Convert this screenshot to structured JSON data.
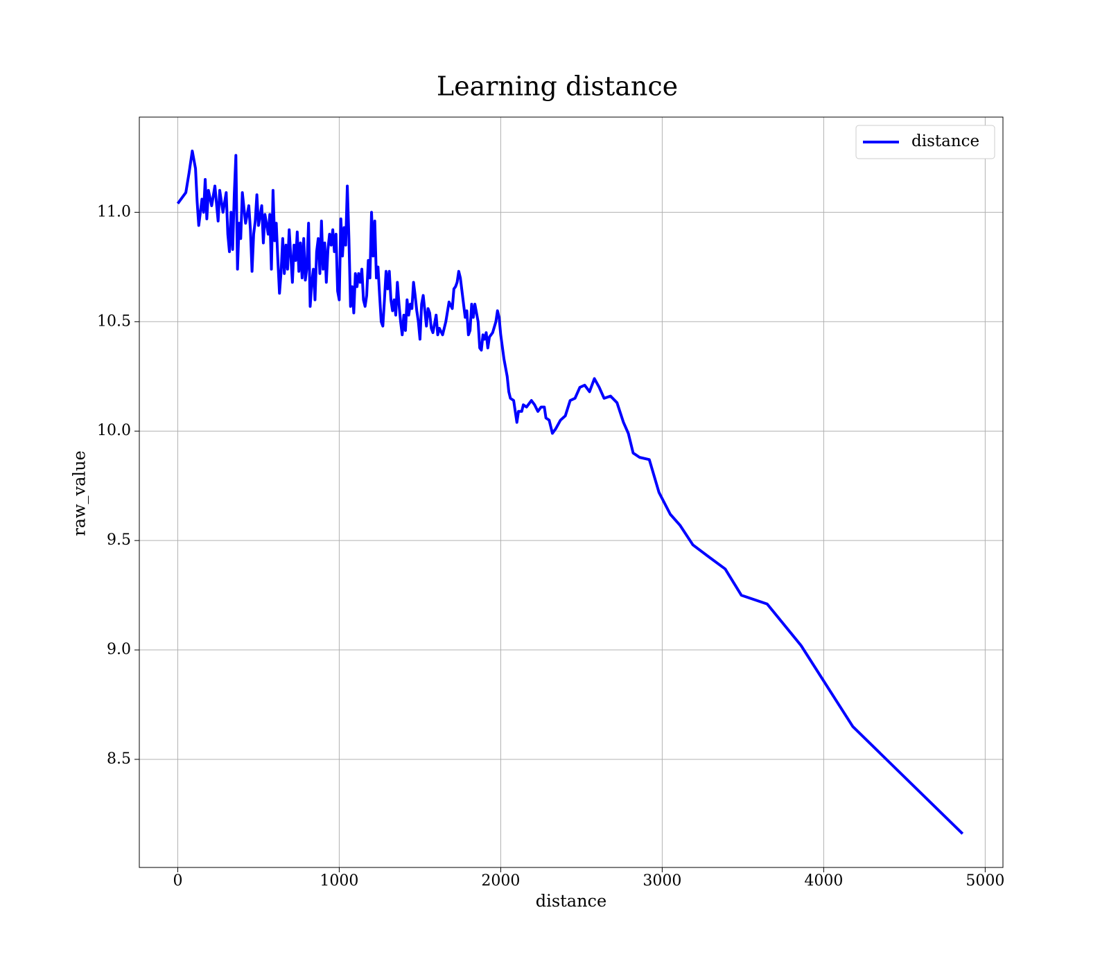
{
  "chart_data": {
    "type": "line",
    "title": "Learning distance",
    "x_label": "distance",
    "y_label": "raw_value",
    "x": [
      0,
      50,
      70,
      90,
      110,
      120,
      130,
      150,
      160,
      170,
      180,
      190,
      210,
      230,
      250,
      260,
      280,
      300,
      310,
      320,
      330,
      340,
      350,
      360,
      370,
      380,
      390,
      400,
      420,
      440,
      450,
      460,
      470,
      480,
      490,
      500,
      520,
      530,
      540,
      560,
      570,
      580,
      590,
      600,
      610,
      620,
      630,
      640,
      650,
      660,
      670,
      680,
      690,
      700,
      710,
      720,
      730,
      740,
      750,
      760,
      770,
      780,
      790,
      800,
      810,
      820,
      830,
      840,
      850,
      860,
      870,
      880,
      890,
      900,
      910,
      920,
      930,
      940,
      950,
      960,
      970,
      980,
      990,
      1000,
      1010,
      1020,
      1030,
      1040,
      1050,
      1060,
      1070,
      1080,
      1090,
      1100,
      1110,
      1120,
      1130,
      1140,
      1150,
      1160,
      1170,
      1180,
      1190,
      1200,
      1210,
      1220,
      1230,
      1240,
      1250,
      1260,
      1270,
      1280,
      1290,
      1300,
      1310,
      1320,
      1330,
      1340,
      1350,
      1360,
      1370,
      1380,
      1390,
      1400,
      1410,
      1420,
      1430,
      1440,
      1450,
      1460,
      1470,
      1480,
      1490,
      1500,
      1510,
      1520,
      1530,
      1540,
      1550,
      1560,
      1570,
      1580,
      1600,
      1610,
      1620,
      1640,
      1660,
      1680,
      1700,
      1710,
      1720,
      1730,
      1740,
      1750,
      1770,
      1780,
      1790,
      1800,
      1810,
      1820,
      1830,
      1840,
      1860,
      1870,
      1880,
      1890,
      1900,
      1910,
      1920,
      1930,
      1950,
      1970,
      1980,
      1990,
      2000,
      2020,
      2040,
      2050,
      2060,
      2080,
      2100,
      2110,
      2130,
      2140,
      2160,
      2190,
      2210,
      2230,
      2250,
      2270,
      2280,
      2300,
      2320,
      2340,
      2370,
      2400,
      2430,
      2460,
      2490,
      2520,
      2550,
      2580,
      2610,
      2640,
      2680,
      2720,
      2760,
      2790,
      2820,
      2860,
      2920,
      2980,
      3050,
      3110,
      3190,
      3280,
      3390,
      3490,
      3650,
      3860,
      4180,
      4860
    ],
    "series": [
      {
        "name": "distance",
        "color": "#0000ff",
        "values": [
          11.04,
          11.09,
          11.18,
          11.28,
          11.2,
          11.05,
          10.94,
          11.06,
          11.0,
          11.15,
          10.97,
          11.1,
          11.03,
          11.12,
          10.96,
          11.1,
          11.0,
          11.09,
          10.9,
          10.82,
          11.0,
          10.83,
          11.08,
          11.26,
          10.74,
          10.95,
          10.88,
          11.09,
          10.95,
          11.03,
          10.92,
          10.73,
          10.9,
          10.96,
          11.08,
          10.94,
          11.03,
          10.86,
          10.99,
          10.9,
          10.99,
          10.74,
          11.1,
          10.87,
          10.95,
          10.78,
          10.63,
          10.73,
          10.88,
          10.72,
          10.85,
          10.74,
          10.92,
          10.8,
          10.68,
          10.85,
          10.78,
          10.91,
          10.73,
          10.86,
          10.7,
          10.88,
          10.69,
          10.75,
          10.95,
          10.57,
          10.68,
          10.74,
          10.6,
          10.82,
          10.88,
          10.72,
          10.96,
          10.74,
          10.86,
          10.68,
          10.83,
          10.9,
          10.85,
          10.92,
          10.82,
          10.9,
          10.64,
          10.6,
          10.97,
          10.8,
          10.93,
          10.85,
          11.12,
          10.88,
          10.57,
          10.66,
          10.54,
          10.72,
          10.66,
          10.72,
          10.68,
          10.74,
          10.6,
          10.57,
          10.62,
          10.78,
          10.7,
          11.0,
          10.8,
          10.96,
          10.7,
          10.75,
          10.62,
          10.5,
          10.48,
          10.6,
          10.73,
          10.65,
          10.73,
          10.6,
          10.55,
          10.6,
          10.53,
          10.68,
          10.58,
          10.5,
          10.44,
          10.53,
          10.46,
          10.6,
          10.53,
          10.58,
          10.56,
          10.68,
          10.62,
          10.55,
          10.5,
          10.42,
          10.58,
          10.62,
          10.55,
          10.48,
          10.56,
          10.54,
          10.47,
          10.45,
          10.53,
          10.44,
          10.47,
          10.44,
          10.5,
          10.59,
          10.56,
          10.65,
          10.66,
          10.68,
          10.73,
          10.7,
          10.58,
          10.52,
          10.55,
          10.44,
          10.46,
          10.58,
          10.52,
          10.58,
          10.5,
          10.38,
          10.37,
          10.44,
          10.42,
          10.45,
          10.38,
          10.43,
          10.45,
          10.5,
          10.55,
          10.52,
          10.44,
          10.33,
          10.25,
          10.18,
          10.15,
          10.14,
          10.04,
          10.09,
          10.09,
          10.12,
          10.11,
          10.14,
          10.12,
          10.09,
          10.11,
          10.11,
          10.06,
          10.05,
          9.99,
          10.01,
          10.05,
          10.07,
          10.14,
          10.15,
          10.2,
          10.21,
          10.18,
          10.24,
          10.2,
          10.15,
          10.16,
          10.13,
          10.04,
          9.99,
          9.9,
          9.88,
          9.87,
          9.72,
          9.62,
          9.57,
          9.48,
          9.43,
          9.37,
          9.25,
          9.21,
          9.02,
          8.65,
          8.16
        ]
      }
    ],
    "xlim": [
      -238,
      5110
    ],
    "ylim": [
      8.006,
      11.435
    ],
    "xticks": [
      0,
      1000,
      2000,
      3000,
      4000,
      5000
    ],
    "yticks": [
      8.5,
      {
        "value": 9,
        "label": "9.0"
      },
      9.5,
      {
        "value": 10,
        "label": "10.0"
      },
      10.5,
      {
        "value": 11,
        "label": "11.0"
      }
    ],
    "grid": true,
    "legend": "upper right"
  }
}
